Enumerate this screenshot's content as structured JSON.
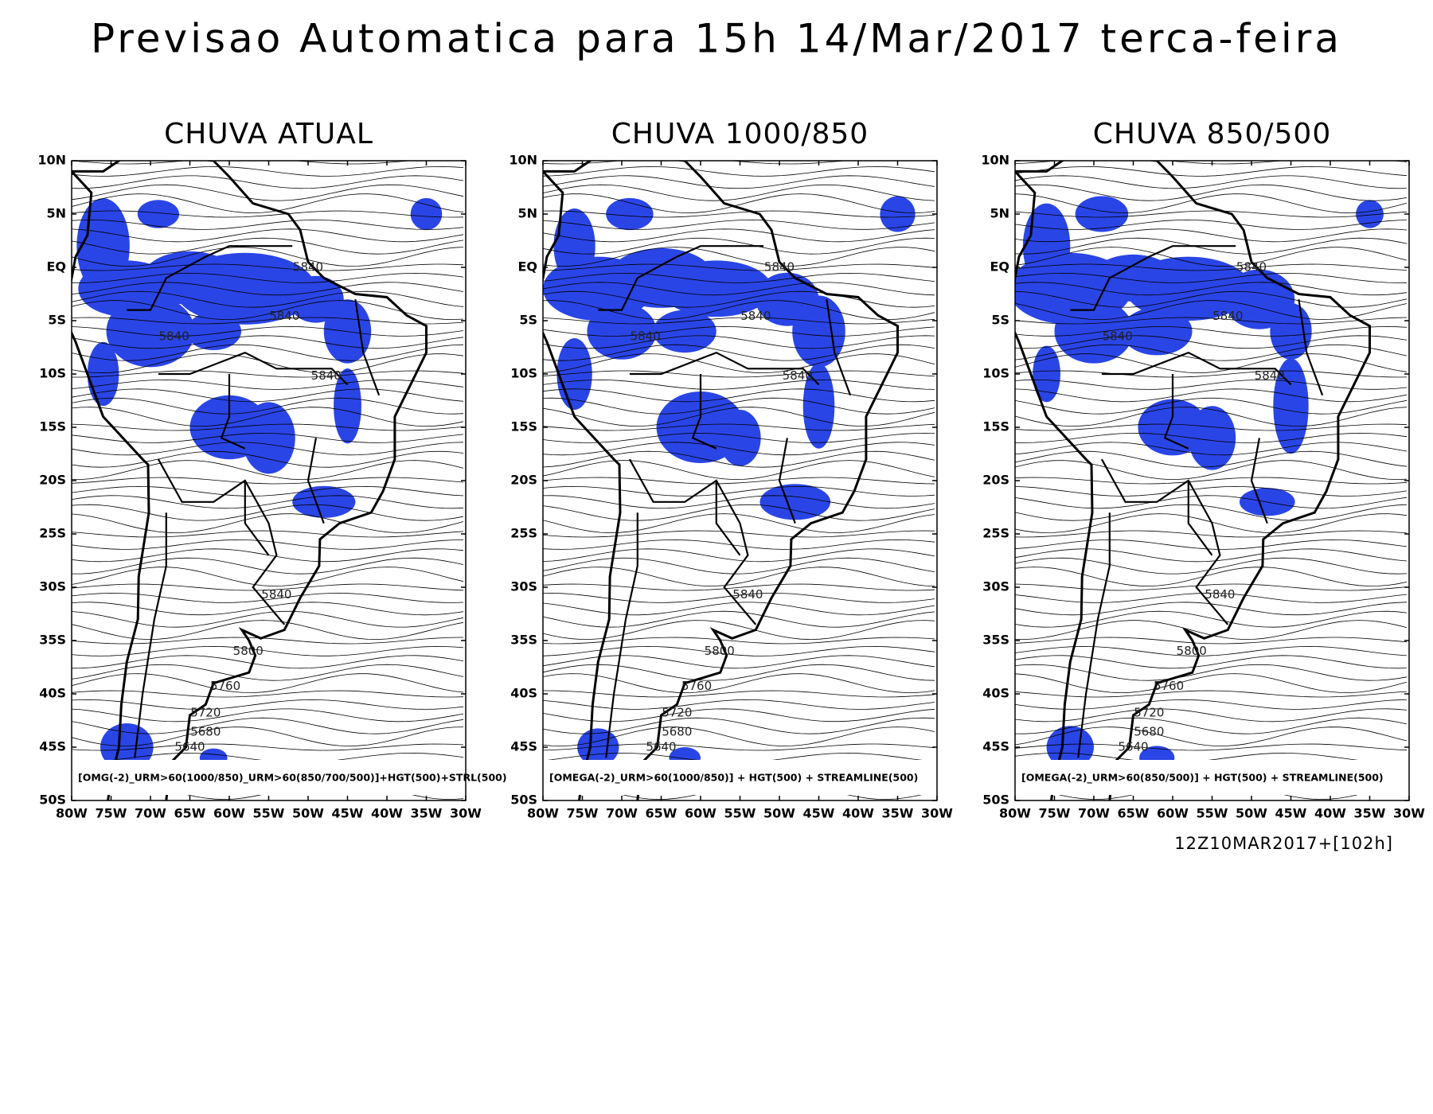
{
  "title": "Previsao Automatica para 15h 14/Mar/2017 terca-feira",
  "axes": {
    "xlim": [
      -80,
      -30
    ],
    "ylim": [
      -50,
      10
    ],
    "xticks": [
      {
        "value": -80,
        "label": "80W"
      },
      {
        "value": -75,
        "label": "75W"
      },
      {
        "value": -70,
        "label": "70W"
      },
      {
        "value": -65,
        "label": "65W"
      },
      {
        "value": -60,
        "label": "60W"
      },
      {
        "value": -55,
        "label": "55W"
      },
      {
        "value": -50,
        "label": "50W"
      },
      {
        "value": -45,
        "label": "45W"
      },
      {
        "value": -40,
        "label": "40W"
      },
      {
        "value": -35,
        "label": "35W"
      },
      {
        "value": -30,
        "label": "30W"
      }
    ],
    "yticks": [
      {
        "value": 10,
        "label": "10N"
      },
      {
        "value": 5,
        "label": "5N"
      },
      {
        "value": 0,
        "label": "EQ"
      },
      {
        "value": -5,
        "label": "5S"
      },
      {
        "value": -10,
        "label": "10S"
      },
      {
        "value": -15,
        "label": "15S"
      },
      {
        "value": -20,
        "label": "20S"
      },
      {
        "value": -25,
        "label": "25S"
      },
      {
        "value": -30,
        "label": "30S"
      },
      {
        "value": -35,
        "label": "35S"
      },
      {
        "value": -40,
        "label": "40S"
      },
      {
        "value": -45,
        "label": "45S"
      },
      {
        "value": -50,
        "label": "50S"
      }
    ]
  },
  "panels": [
    {
      "title": "CHUVA ATUAL",
      "caption": "[OMG(-2)_URM>60(1000/850)_URM>60(850/700/500)]+HGT(500)+STRL(500)",
      "contour_labels": [
        "5840",
        "5840",
        "5840",
        "5840",
        "5840",
        "5800",
        "5760",
        "5720",
        "5680",
        "5640"
      ]
    },
    {
      "title": "CHUVA 1000/850",
      "caption": "[OMEGA(-2)_URM>60(1000/850)] + HGT(500) + STREAMLINE(500)",
      "contour_labels": [
        "5840",
        "5840",
        "5840",
        "5840",
        "5840",
        "5800",
        "5760",
        "5720",
        "5680",
        "5640"
      ]
    },
    {
      "title": "CHUVA 850/500",
      "caption": "[OMEGA(-2)_URM>60(850/500)] + HGT(500) + STREAMLINE(500)",
      "contour_labels": [
        "5840",
        "5840",
        "5840",
        "5840",
        "5840",
        "5800",
        "5760",
        "5720",
        "5680",
        "5640"
      ]
    }
  ],
  "footer": "12Z10MAR2017+[102h]"
}
